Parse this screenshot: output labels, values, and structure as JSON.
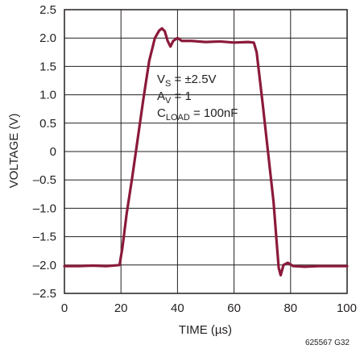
{
  "chart_data": {
    "type": "line",
    "xlabel": "TIME (µs)",
    "ylabel": "VOLTAGE (V)",
    "xlim": [
      0,
      100
    ],
    "ylim": [
      -2.5,
      2.5
    ],
    "x_ticks": [
      0,
      20,
      40,
      60,
      80,
      100
    ],
    "y_ticks": [
      2.5,
      2.0,
      1.5,
      1.0,
      0.5,
      0,
      -0.5,
      -1.0,
      -1.5,
      -2.0,
      -2.5
    ],
    "x_tick_labels": [
      "0",
      "20",
      "40",
      "60",
      "80",
      "100"
    ],
    "y_tick_labels": [
      "2.5",
      "2.0",
      "1.5",
      "1.0",
      "0.5",
      "0",
      "–0.5",
      "–1.0",
      "–1.5",
      "–2.0",
      "–2.5"
    ],
    "grid": true,
    "line_color": "#8b1a3a",
    "annotations": {
      "vs": {
        "main": "V",
        "sub": "S",
        "rest": " = ±2.5V"
      },
      "av": {
        "main": "A",
        "sub": "V",
        "rest": " = 1"
      },
      "cload": {
        "main": "C",
        "sub": "LOAD",
        "rest": " = 100nF"
      }
    },
    "figure_code": "625567 G32",
    "series": [
      {
        "x": [
          0,
          5,
          10,
          15,
          19.5,
          20.5,
          22,
          24,
          26,
          28,
          30,
          32,
          33.5,
          34.5,
          35.5,
          36.5,
          37.5,
          38.5,
          40,
          41.5,
          43,
          45,
          50,
          55,
          60,
          65,
          67,
          68,
          70,
          72,
          74,
          75,
          75.8,
          76.5,
          77.5,
          79,
          81,
          85,
          90,
          95,
          100
        ],
        "y": [
          -2.02,
          -2.02,
          -2.01,
          -2.02,
          -2.0,
          -1.7,
          -1.1,
          -0.45,
          0.25,
          0.95,
          1.6,
          2.0,
          2.13,
          2.17,
          2.12,
          1.95,
          1.85,
          1.95,
          2.0,
          1.95,
          1.95,
          1.95,
          1.93,
          1.94,
          1.92,
          1.93,
          1.92,
          1.75,
          0.9,
          0.0,
          -0.9,
          -1.55,
          -2.05,
          -2.18,
          -2.0,
          -1.96,
          -2.02,
          -2.03,
          -2.02,
          -2.02,
          -2.02
        ]
      }
    ]
  }
}
